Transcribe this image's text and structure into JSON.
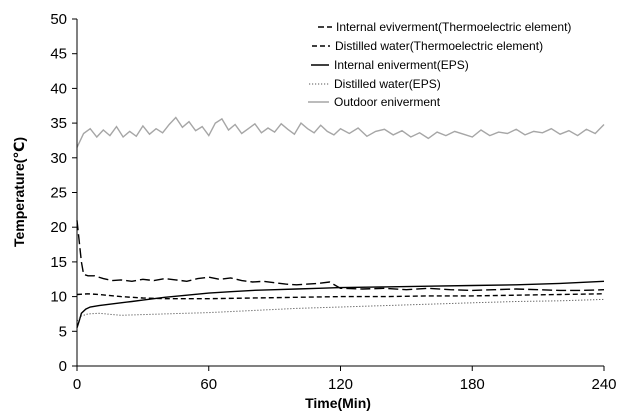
{
  "chart_data": {
    "type": "line",
    "xlabel": "Time(Min)",
    "ylabel": "Temperature(℃)",
    "xlim": [
      0,
      240
    ],
    "ylim": [
      0,
      50
    ],
    "xticks": [
      "0",
      "60",
      "120",
      "180",
      "240"
    ],
    "yticks": [
      "0",
      "5",
      "10",
      "15",
      "20",
      "25",
      "30",
      "35",
      "40",
      "45",
      "50"
    ],
    "grid": false,
    "legend_position": "top-right",
    "series": [
      {
        "name": "Internal eviverment(Thermoelectric element)",
        "color": "#000000",
        "dash": "long-dash",
        "x": [
          0,
          1,
          2,
          3,
          5,
          8,
          12,
          16,
          20,
          25,
          30,
          35,
          40,
          45,
          50,
          55,
          60,
          65,
          70,
          75,
          80,
          85,
          90,
          95,
          100,
          105,
          110,
          115,
          120,
          130,
          140,
          150,
          160,
          170,
          180,
          190,
          200,
          210,
          220,
          230,
          240
        ],
        "y": [
          21,
          18,
          15,
          13.2,
          13.0,
          13.0,
          12.6,
          12.3,
          12.4,
          12.2,
          12.5,
          12.3,
          12.6,
          12.4,
          12.2,
          12.6,
          12.8,
          12.5,
          12.7,
          12.3,
          12.1,
          12.2,
          12.0,
          11.8,
          11.7,
          11.8,
          11.9,
          12.1,
          11.2,
          11.1,
          11.2,
          11.0,
          11.2,
          11.0,
          10.9,
          11.0,
          11.1,
          11.0,
          10.9,
          10.9,
          11.0
        ]
      },
      {
        "name": "Distilled water(Thermoelectric element)",
        "color": "#000000",
        "dash": "short-dash",
        "x": [
          0,
          5,
          10,
          20,
          30,
          40,
          60,
          80,
          100,
          120,
          140,
          160,
          180,
          200,
          220,
          240
        ],
        "y": [
          10.3,
          10.4,
          10.3,
          10.0,
          9.8,
          9.7,
          9.7,
          9.8,
          9.9,
          10.0,
          10.0,
          10.1,
          10.1,
          10.2,
          10.3,
          10.4
        ]
      },
      {
        "name": "Internal eniverment(EPS)",
        "color": "#000000",
        "dash": "solid",
        "x": [
          0,
          1,
          2,
          4,
          6,
          10,
          15,
          20,
          25,
          30,
          40,
          50,
          60,
          70,
          80,
          90,
          100,
          110,
          120,
          140,
          160,
          180,
          200,
          220,
          240
        ],
        "y": [
          5.5,
          6.5,
          7.6,
          8.2,
          8.5,
          8.7,
          8.9,
          9.1,
          9.3,
          9.5,
          9.9,
          10.2,
          10.5,
          10.7,
          10.9,
          11.0,
          11.1,
          11.2,
          11.3,
          11.4,
          11.5,
          11.6,
          11.7,
          11.9,
          12.2
        ]
      },
      {
        "name": "Distilled water(EPS)",
        "color": "#555555",
        "dash": "dotted",
        "x": [
          0,
          2,
          5,
          10,
          20,
          30,
          40,
          60,
          80,
          100,
          120,
          140,
          160,
          180,
          200,
          220,
          240
        ],
        "y": [
          6.5,
          7.2,
          7.5,
          7.6,
          7.3,
          7.4,
          7.5,
          7.7,
          8.0,
          8.3,
          8.5,
          8.7,
          8.9,
          9.1,
          9.3,
          9.4,
          9.6
        ]
      },
      {
        "name": "Outdoor eniverment",
        "color": "#a6a6a6",
        "dash": "solid",
        "x": [
          0,
          3,
          6,
          9,
          12,
          15,
          18,
          21,
          24,
          27,
          30,
          33,
          36,
          39,
          42,
          45,
          48,
          51,
          54,
          57,
          60,
          63,
          66,
          69,
          72,
          75,
          78,
          81,
          84,
          87,
          90,
          93,
          96,
          99,
          102,
          105,
          108,
          111,
          114,
          117,
          120,
          124,
          128,
          132,
          136,
          140,
          144,
          148,
          152,
          156,
          160,
          164,
          168,
          172,
          176,
          180,
          184,
          188,
          192,
          196,
          200,
          204,
          208,
          212,
          216,
          220,
          224,
          228,
          232,
          236,
          240
        ],
        "y": [
          31.5,
          33.5,
          34.2,
          33.0,
          34.0,
          33.2,
          34.5,
          33.0,
          33.8,
          33.1,
          34.6,
          33.4,
          34.2,
          33.6,
          34.8,
          35.8,
          34.4,
          35.2,
          33.9,
          34.5,
          33.2,
          35.0,
          35.6,
          34.0,
          34.8,
          33.5,
          34.2,
          34.9,
          33.6,
          34.3,
          33.7,
          34.9,
          34.1,
          33.4,
          35.0,
          34.2,
          33.6,
          34.7,
          33.8,
          33.3,
          34.2,
          33.5,
          34.3,
          33.1,
          33.8,
          34.1,
          33.3,
          33.9,
          33.0,
          33.6,
          32.8,
          33.7,
          33.2,
          33.8,
          33.4,
          33.0,
          34.0,
          33.2,
          33.7,
          33.5,
          34.1,
          33.3,
          33.8,
          33.6,
          34.2,
          33.4,
          33.9,
          33.2,
          34.1,
          33.5,
          34.8
        ]
      }
    ]
  }
}
